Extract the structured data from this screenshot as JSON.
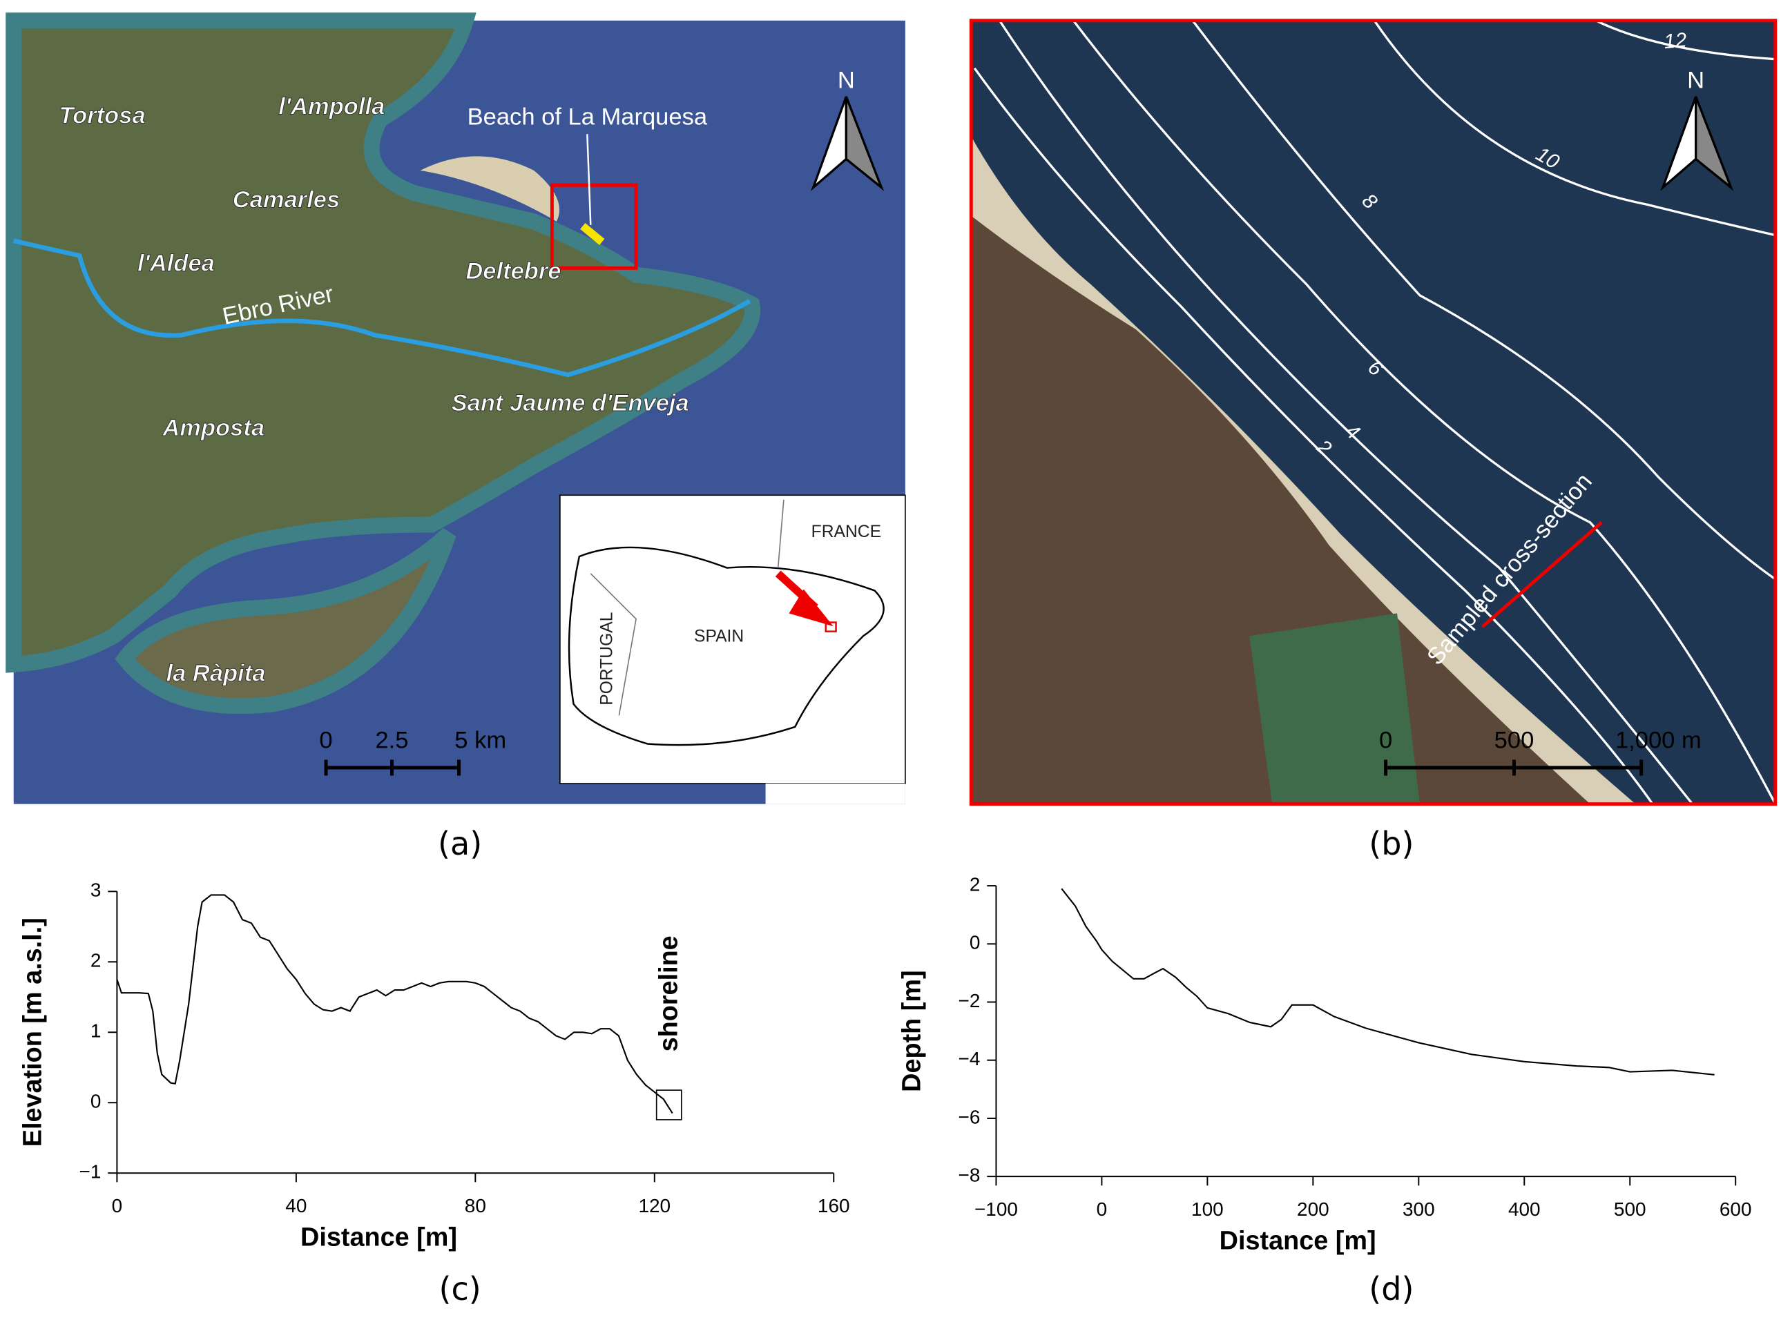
{
  "captions": [
    "(a)",
    "(b)",
    "(c)",
    "(d)"
  ],
  "map_a": {
    "labels": [
      "Tortosa",
      "l'Ampolla",
      "Camarles",
      "l'Aldea",
      "Deltebre",
      "Ebro River",
      "Amposta",
      "Sant Jaume d'Enveja",
      "la Ràpita"
    ],
    "beach": "Beach of La Marquesa",
    "north": "N",
    "scale": [
      "0",
      "2.5",
      "5 km"
    ],
    "inset": [
      "FRANCE",
      "SPAIN",
      "PORTUGAL"
    ]
  },
  "map_b": {
    "contours": [
      "12",
      "10",
      "8",
      "6",
      "4",
      "2"
    ],
    "north": "N",
    "section": "Sampled cross-section",
    "scale": [
      "0",
      "500",
      "1,000 m"
    ]
  },
  "chart_data": [
    {
      "type": "line",
      "xlabel": "Distance [m]",
      "ylabel": "Elevation [m a.s.l.]",
      "annotation": "shoreline",
      "color": "#000000",
      "xlim": [
        0,
        160
      ],
      "ylim": [
        -1,
        3
      ],
      "xticks": [
        0,
        40,
        80,
        120,
        160
      ],
      "yticks": [
        {
          "value": -1,
          "label": "−1"
        },
        0,
        1,
        2,
        3
      ],
      "x": [
        0,
        1,
        5,
        7,
        8,
        9,
        10,
        12,
        13,
        14,
        16,
        18,
        19,
        21,
        24,
        26,
        28,
        30,
        32,
        34,
        36,
        38,
        40,
        42,
        44,
        46,
        48,
        50,
        52,
        54,
        56,
        58,
        60,
        62,
        64,
        66,
        68,
        70,
        72,
        74,
        76,
        78,
        80,
        82,
        84,
        86,
        88,
        90,
        92,
        94,
        96,
        98,
        100,
        102,
        104,
        106,
        108,
        110,
        112,
        114,
        116,
        118,
        120,
        122,
        124
      ],
      "values": [
        1.75,
        1.56,
        1.56,
        1.55,
        1.3,
        0.7,
        0.4,
        0.28,
        0.27,
        0.6,
        1.4,
        2.5,
        2.85,
        2.95,
        2.95,
        2.85,
        2.6,
        2.55,
        2.35,
        2.3,
        2.1,
        1.9,
        1.75,
        1.55,
        1.4,
        1.32,
        1.3,
        1.35,
        1.3,
        1.5,
        1.55,
        1.6,
        1.52,
        1.6,
        1.6,
        1.65,
        1.7,
        1.65,
        1.7,
        1.72,
        1.72,
        1.72,
        1.7,
        1.65,
        1.55,
        1.45,
        1.35,
        1.3,
        1.2,
        1.15,
        1.05,
        0.95,
        0.9,
        1.0,
        1.0,
        0.98,
        1.05,
        1.05,
        0.95,
        0.6,
        0.4,
        0.25,
        0.15,
        0.05,
        -0.15
      ]
    },
    {
      "type": "line",
      "xlabel": "Distance [m]",
      "ylabel": "Depth [m]",
      "color": "#000000",
      "xlim": [
        -100,
        600
      ],
      "ylim": [
        -8,
        2
      ],
      "xticks": [
        {
          "value": -100,
          "label": "−100"
        },
        0,
        100,
        200,
        300,
        400,
        500,
        600
      ],
      "yticks": [
        {
          "value": -8,
          "label": "−8"
        },
        {
          "value": -6,
          "label": "−6"
        },
        {
          "value": -4,
          "label": "−4"
        },
        {
          "value": -2,
          "label": "−2"
        },
        0,
        2
      ],
      "x": [
        -38,
        -25,
        -15,
        -5,
        0,
        10,
        20,
        30,
        40,
        50,
        58,
        70,
        80,
        90,
        100,
        120,
        140,
        160,
        170,
        180,
        200,
        220,
        250,
        300,
        350,
        400,
        450,
        480,
        500,
        540,
        580
      ],
      "values": [
        1.9,
        1.3,
        0.6,
        0.1,
        -0.2,
        -0.6,
        -0.9,
        -1.2,
        -1.2,
        -1.0,
        -0.85,
        -1.15,
        -1.5,
        -1.8,
        -2.2,
        -2.4,
        -2.7,
        -2.85,
        -2.6,
        -2.1,
        -2.1,
        -2.5,
        -2.9,
        -3.4,
        -3.8,
        -4.05,
        -4.2,
        -4.25,
        -4.4,
        -4.35,
        -4.5
      ]
    }
  ]
}
